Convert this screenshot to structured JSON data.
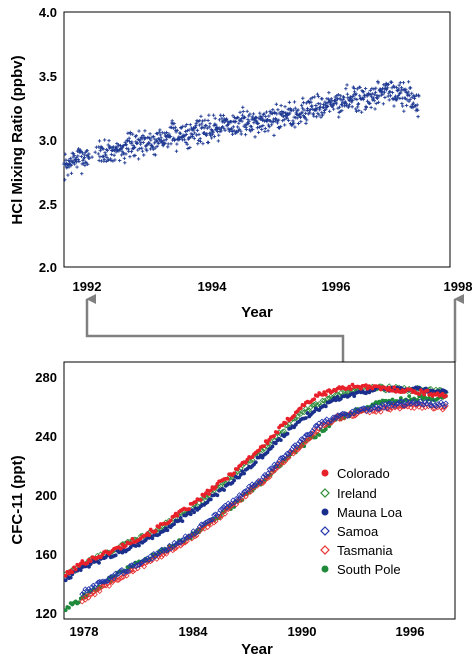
{
  "chart_data": [
    {
      "type": "scatter",
      "title": "",
      "xlabel": "Year",
      "ylabel": "HCl Mixing Ratio (ppbv)",
      "xlim": [
        1991.8,
        1998
      ],
      "ylim": [
        2.0,
        4.0
      ],
      "xticks": [
        "1992",
        "1994",
        "1996",
        "1998"
      ],
      "yticks": [
        "2.0",
        "2.5",
        "3.0",
        "3.5",
        "4.0"
      ],
      "marker": "plus",
      "grid": false,
      "series": [
        {
          "color": "#1f3a93",
          "trend": {
            "x": [
              1991.8,
              1992.0,
              1992.5,
              1993.0,
              1993.5,
              1994.0,
              1994.5,
              1995.0,
              1995.5,
              1996.0,
              1996.5,
              1997.0,
              1997.3,
              1997.5
            ],
            "y": [
              2.78,
              2.85,
              2.9,
              2.97,
              3.02,
              3.08,
              3.12,
              3.15,
              3.2,
              3.27,
              3.32,
              3.38,
              3.35,
              3.28
            ]
          },
          "scatter_spread": 0.09
        }
      ]
    },
    {
      "type": "scatter",
      "title": "",
      "xlabel": "Year",
      "ylabel": "CFC-11 (ppt)",
      "xlim": [
        1977,
        1998.5
      ],
      "ylim": [
        120,
        290
      ],
      "xticks": [
        "1978",
        "1984",
        "1990",
        "1996"
      ],
      "yticks": [
        "120",
        "160",
        "200",
        "240",
        "280"
      ],
      "legend_position": "lower-right",
      "grid": false,
      "series": [
        {
          "name": "Colorado",
          "color": "#e8202a",
          "marker": "filled-circle",
          "x": [
            1977,
            1978,
            1980,
            1982,
            1984,
            1986,
            1988,
            1990,
            1991,
            1992,
            1993,
            1994,
            1996,
            1998
          ],
          "y": [
            148,
            157,
            167,
            179,
            195,
            214,
            235,
            260,
            268,
            272,
            274,
            273,
            271,
            268
          ]
        },
        {
          "name": "Ireland",
          "color": "#2e8b3a",
          "marker": "open-diamond",
          "x": [
            1977,
            1978,
            1980,
            1982,
            1984,
            1986,
            1988,
            1990,
            1992,
            1994,
            1996,
            1998
          ],
          "y": [
            148,
            156,
            167,
            178,
            193,
            212,
            233,
            256,
            268,
            273,
            272,
            270
          ]
        },
        {
          "name": "Mauna Loa",
          "color": "#1a2f8c",
          "marker": "filled-circle",
          "x": [
            1977,
            1978,
            1980,
            1982,
            1984,
            1986,
            1988,
            1990,
            1992,
            1994,
            1996,
            1998
          ],
          "y": [
            146,
            154,
            164,
            175,
            190,
            208,
            229,
            252,
            266,
            272,
            272,
            270
          ]
        },
        {
          "name": "Samoa",
          "color": "#2233aa",
          "marker": "open-diamond",
          "x": [
            1978,
            1980,
            1982,
            1984,
            1986,
            1988,
            1990,
            1991,
            1992,
            1994,
            1996,
            1998
          ],
          "y": [
            137,
            150,
            162,
            176,
            195,
            214,
            238,
            248,
            254,
            260,
            263,
            262
          ]
        },
        {
          "name": "Tasmania",
          "color": "#e83030",
          "marker": "open-diamond",
          "x": [
            1978,
            1980,
            1982,
            1984,
            1986,
            1988,
            1990,
            1991,
            1992,
            1994,
            1996,
            1998
          ],
          "y": [
            132,
            147,
            160,
            174,
            192,
            212,
            235,
            246,
            253,
            258,
            261,
            260
          ]
        },
        {
          "name": "South Pole",
          "color": "#1e8a3a",
          "marker": "filled-circle",
          "x": [
            1977,
            1978,
            1980,
            1982,
            1984,
            1986,
            1988,
            1990,
            1992,
            1994,
            1996,
            1998
          ],
          "y": [
            126,
            134,
            150,
            162,
            175,
            192,
            212,
            234,
            252,
            262,
            266,
            266
          ]
        }
      ]
    }
  ]
}
